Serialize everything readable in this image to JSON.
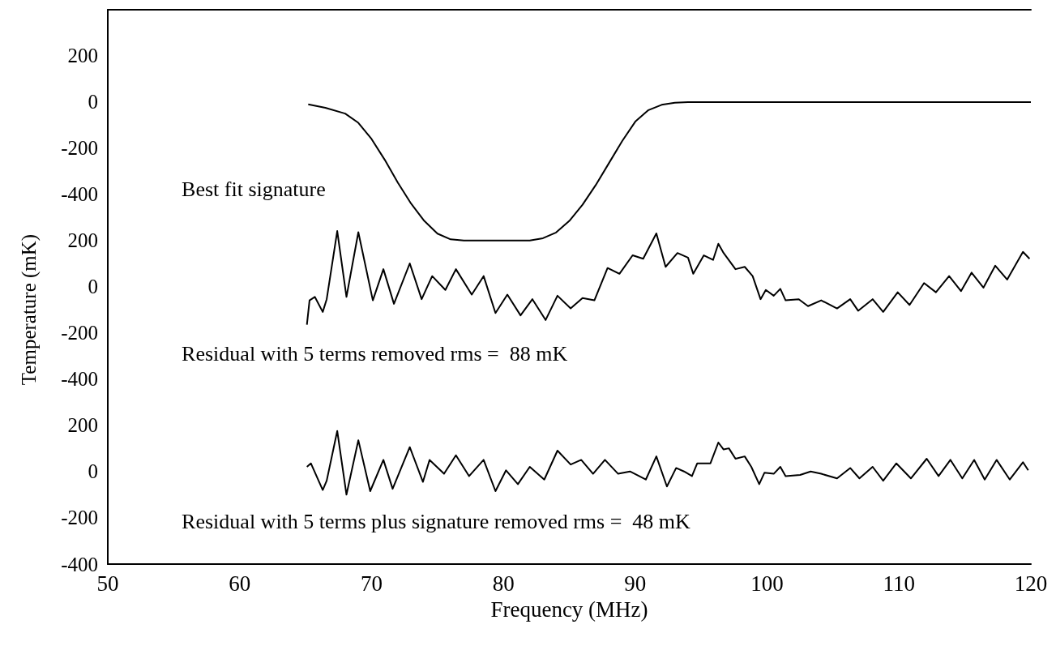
{
  "chart_data": [
    {
      "type": "line",
      "annotations": [
        "Best fit signature"
      ],
      "xlim": [
        50,
        120
      ],
      "ylim": [
        -650,
        400
      ],
      "yticks": [
        200,
        0,
        -200,
        -400
      ],
      "tick_labels": "y",
      "grid": false,
      "marker": "none",
      "series": [
        {
          "color": "#000000",
          "x": [
            65.2,
            66.5,
            68,
            69,
            70,
            71,
            72,
            73,
            74,
            75,
            76,
            77,
            82,
            83,
            84,
            85,
            86,
            87,
            88,
            89,
            90,
            91,
            92,
            93,
            94,
            120
          ],
          "values": [
            -10,
            -25,
            -50,
            -90,
            -160,
            -250,
            -350,
            -440,
            -515,
            -570,
            -595,
            -600,
            -600,
            -590,
            -565,
            -515,
            -445,
            -360,
            -265,
            -170,
            -85,
            -35,
            -12,
            -3,
            0,
            0
          ]
        }
      ]
    },
    {
      "type": "line",
      "ylabel": "Temperature (mK)",
      "annotations": [
        "Residual with 5 terms removed rms =  88 mK"
      ],
      "xlim": [
        50,
        120
      ],
      "ylim": [
        -500,
        300
      ],
      "yticks": [
        200,
        0,
        -200,
        -400
      ],
      "tick_labels": "y",
      "grid": false,
      "marker": "none",
      "series": [
        {
          "color": "#000000",
          "x": [
            65.1,
            65.3,
            65.7,
            66.3,
            66.6,
            67.4,
            68.1,
            69.0,
            70.1,
            70.9,
            71.7,
            72.9,
            73.8,
            74.6,
            75.6,
            76.4,
            77.6,
            78.5,
            79.4,
            80.3,
            81.3,
            82.2,
            83.2,
            84.1,
            85.1,
            86.0,
            86.9,
            87.9,
            88.8,
            89.8,
            90.6,
            91.6,
            92.3,
            93.2,
            94.0,
            94.4,
            95.2,
            95.9,
            96.3,
            96.7,
            97.6,
            98.3,
            98.9,
            99.5,
            99.9,
            100.5,
            101.0,
            101.4,
            102.4,
            103.1,
            104.1,
            105.3,
            106.3,
            106.9,
            108.0,
            108.8,
            109.9,
            110.8,
            111.9,
            112.8,
            113.8,
            114.7,
            115.5,
            116.4,
            117.3,
            118.2,
            119.4,
            119.9
          ],
          "values": [
            -165,
            -60,
            -45,
            -110,
            -55,
            240,
            -45,
            235,
            -60,
            75,
            -75,
            100,
            -55,
            45,
            -15,
            75,
            -35,
            45,
            -115,
            -35,
            -125,
            -55,
            -145,
            -40,
            -95,
            -50,
            -60,
            80,
            55,
            135,
            120,
            230,
            85,
            145,
            125,
            55,
            135,
            115,
            185,
            145,
            75,
            85,
            45,
            -55,
            -15,
            -40,
            -10,
            -60,
            -55,
            -85,
            -60,
            -95,
            -55,
            -105,
            -55,
            -110,
            -25,
            -80,
            15,
            -25,
            45,
            -20,
            60,
            -5,
            90,
            30,
            150,
            120
          ]
        }
      ]
    },
    {
      "type": "line",
      "xlabel": "Frequency (MHz)",
      "annotations": [
        "Residual with 5 terms plus signature removed rms =  48 mK"
      ],
      "xlim": [
        50,
        120
      ],
      "xticks": [
        50,
        60,
        70,
        80,
        90,
        100,
        110,
        120
      ],
      "ylim": [
        -400,
        300
      ],
      "yticks": [
        200,
        0,
        -200,
        -400
      ],
      "grid": false,
      "marker": "none",
      "series": [
        {
          "color": "#000000",
          "x": [
            65.1,
            65.4,
            66.3,
            66.6,
            67.4,
            68.1,
            69.0,
            69.9,
            70.9,
            71.6,
            72.9,
            73.9,
            74.4,
            75.5,
            76.4,
            77.4,
            78.5,
            79.4,
            80.2,
            81.1,
            82.0,
            83.1,
            84.1,
            85.1,
            85.9,
            86.8,
            87.7,
            88.7,
            89.6,
            90.8,
            91.6,
            92.4,
            93.1,
            93.7,
            94.3,
            94.7,
            95.7,
            96.3,
            96.7,
            97.1,
            97.6,
            98.3,
            98.8,
            99.4,
            99.8,
            100.5,
            101.0,
            101.4,
            102.5,
            103.3,
            104.1,
            105.3,
            106.3,
            107.0,
            108.0,
            108.8,
            109.8,
            110.9,
            112.1,
            113.0,
            113.9,
            114.8,
            115.7,
            116.5,
            117.4,
            118.4,
            119.4,
            119.8
          ],
          "values": [
            20,
            35,
            -80,
            -40,
            175,
            -100,
            135,
            -85,
            50,
            -75,
            105,
            -45,
            50,
            -10,
            70,
            -20,
            50,
            -85,
            5,
            -55,
            20,
            -35,
            90,
            30,
            50,
            -10,
            50,
            -10,
            0,
            -35,
            65,
            -65,
            15,
            0,
            -20,
            35,
            35,
            125,
            95,
            100,
            55,
            65,
            20,
            -55,
            -5,
            -10,
            20,
            -20,
            -15,
            0,
            -10,
            -30,
            15,
            -30,
            20,
            -40,
            35,
            -30,
            55,
            -20,
            50,
            -30,
            50,
            -35,
            50,
            -35,
            40,
            5
          ]
        }
      ]
    }
  ]
}
